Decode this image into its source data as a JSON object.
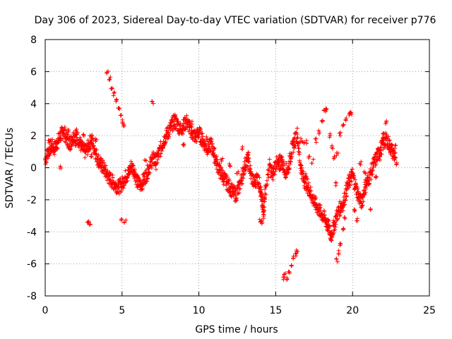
{
  "chart_data": {
    "type": "scatter",
    "title": "Day 306 of 2023, Sidereal Day-to-day VTEC variation (SDTVAR) for receiver p776",
    "xlabel": "GPS time / hours",
    "ylabel": "SDTVAR / TECUs",
    "xlim": [
      0,
      25
    ],
    "ylim": [
      -8,
      8
    ],
    "xticks": [
      0,
      5,
      10,
      15,
      20,
      25
    ],
    "yticks": [
      -8,
      -6,
      -4,
      -2,
      0,
      2,
      4,
      6,
      8
    ],
    "grid": true,
    "marker": "+",
    "series": [
      {
        "name": "SDTVAR",
        "color": "#ff0000",
        "trace_points": [
          [
            0.0,
            0.5
          ],
          [
            0.2,
            1.0
          ],
          [
            0.4,
            1.4
          ],
          [
            0.6,
            1.2
          ],
          [
            0.8,
            1.6
          ],
          [
            1.0,
            2.0
          ],
          [
            1.2,
            2.3
          ],
          [
            1.4,
            1.8
          ],
          [
            1.6,
            1.5
          ],
          [
            1.8,
            1.9
          ],
          [
            2.0,
            2.1
          ],
          [
            2.2,
            1.7
          ],
          [
            2.4,
            1.2
          ],
          [
            2.6,
            1.0
          ],
          [
            2.8,
            1.3
          ],
          [
            3.0,
            1.8
          ],
          [
            3.2,
            1.2
          ],
          [
            3.4,
            0.6
          ],
          [
            3.6,
            0.2
          ],
          [
            3.8,
            0.0
          ],
          [
            4.0,
            -0.4
          ],
          [
            4.2,
            -0.7
          ],
          [
            4.4,
            -0.9
          ],
          [
            4.6,
            -1.1
          ],
          [
            4.8,
            -1.2
          ],
          [
            5.0,
            -1.0
          ],
          [
            5.2,
            -0.6
          ],
          [
            5.4,
            -0.4
          ],
          [
            5.6,
            0.1
          ],
          [
            5.8,
            -0.2
          ],
          [
            6.0,
            -0.9
          ],
          [
            6.2,
            -1.1
          ],
          [
            6.4,
            -0.8
          ],
          [
            6.6,
            -0.4
          ],
          [
            6.8,
            0.1
          ],
          [
            7.0,
            0.6
          ],
          [
            7.2,
            0.3
          ],
          [
            7.4,
            0.9
          ],
          [
            7.6,
            1.4
          ],
          [
            7.8,
            1.9
          ],
          [
            8.0,
            2.2
          ],
          [
            8.2,
            2.6
          ],
          [
            8.4,
            2.9
          ],
          [
            8.6,
            2.7
          ],
          [
            8.8,
            2.4
          ],
          [
            9.0,
            2.6
          ],
          [
            9.2,
            2.9
          ],
          [
            9.4,
            2.5
          ],
          [
            9.6,
            2.1
          ],
          [
            9.8,
            1.9
          ],
          [
            10.0,
            2.2
          ],
          [
            10.2,
            1.8
          ],
          [
            10.4,
            1.4
          ],
          [
            10.6,
            1.2
          ],
          [
            10.8,
            1.5
          ],
          [
            11.0,
            0.8
          ],
          [
            11.2,
            0.2
          ],
          [
            11.4,
            -0.3
          ],
          [
            11.6,
            -0.6
          ],
          [
            11.8,
            -0.9
          ],
          [
            12.0,
            -1.2
          ],
          [
            12.2,
            -1.5
          ],
          [
            12.4,
            -1.7
          ],
          [
            12.6,
            -1.3
          ],
          [
            12.8,
            -0.6
          ],
          [
            13.0,
            0.2
          ],
          [
            13.2,
            0.5
          ],
          [
            13.4,
            -0.5
          ],
          [
            13.6,
            -1.0
          ],
          [
            13.8,
            -0.6
          ],
          [
            14.0,
            -1.2
          ],
          [
            14.1,
            -2.1
          ],
          [
            14.2,
            -2.8
          ],
          [
            14.3,
            -1.6
          ],
          [
            14.6,
            0.1
          ],
          [
            14.8,
            -0.5
          ],
          [
            15.0,
            0.3
          ],
          [
            15.2,
            0.1
          ],
          [
            15.4,
            0.4
          ],
          [
            15.6,
            -0.2
          ],
          [
            15.8,
            -0.1
          ],
          [
            16.0,
            0.9
          ],
          [
            16.2,
            1.6
          ],
          [
            16.4,
            2.1
          ],
          [
            16.6,
            0.2
          ],
          [
            16.8,
            -0.7
          ],
          [
            17.0,
            -1.0
          ],
          [
            17.2,
            -1.4
          ],
          [
            17.4,
            -1.9
          ],
          [
            17.6,
            -2.3
          ],
          [
            17.8,
            -2.6
          ],
          [
            18.0,
            -2.9
          ],
          [
            18.2,
            -3.2
          ],
          [
            18.4,
            -3.6
          ],
          [
            18.6,
            -4.2
          ],
          [
            18.8,
            -3.6
          ],
          [
            19.0,
            -2.9
          ],
          [
            19.2,
            -2.5
          ],
          [
            19.4,
            -2.2
          ],
          [
            19.6,
            -1.4
          ],
          [
            19.8,
            -0.8
          ],
          [
            20.0,
            -0.4
          ],
          [
            20.2,
            -1.2
          ],
          [
            20.4,
            -1.8
          ],
          [
            20.6,
            -2.2
          ],
          [
            20.8,
            -1.2
          ],
          [
            21.0,
            -0.8
          ],
          [
            21.2,
            -0.3
          ],
          [
            21.4,
            0.3
          ],
          [
            21.6,
            0.7
          ],
          [
            21.8,
            1.1
          ],
          [
            22.0,
            1.5
          ],
          [
            22.2,
            1.8
          ],
          [
            22.4,
            1.4
          ],
          [
            22.6,
            1.0
          ],
          [
            22.8,
            0.6
          ]
        ],
        "extra_points": [
          [
            0.2,
            1.6
          ],
          [
            0.5,
            1.1
          ],
          [
            1.0,
            0.1
          ],
          [
            1.5,
            2.3
          ],
          [
            2.0,
            1.5
          ],
          [
            2.5,
            2.1
          ],
          [
            3.0,
            0.7
          ],
          [
            3.3,
            1.7
          ],
          [
            4.05,
            6.0
          ],
          [
            4.2,
            5.6
          ],
          [
            4.35,
            5.0
          ],
          [
            4.5,
            4.6
          ],
          [
            4.65,
            4.2
          ],
          [
            4.8,
            3.7
          ],
          [
            4.9,
            3.2
          ],
          [
            5.0,
            2.9
          ],
          [
            5.15,
            2.6
          ],
          [
            2.8,
            -3.4
          ],
          [
            2.9,
            -3.5
          ],
          [
            5.0,
            -3.2
          ],
          [
            5.2,
            -3.3
          ],
          [
            7.0,
            4.1
          ],
          [
            6.5,
            0.5
          ],
          [
            7.2,
            0.8
          ],
          [
            8.5,
            3.2
          ],
          [
            9.0,
            1.5
          ],
          [
            9.5,
            2.8
          ],
          [
            10.5,
            1.9
          ],
          [
            11.0,
            1.2
          ],
          [
            11.5,
            0.5
          ],
          [
            12.0,
            0.2
          ],
          [
            12.5,
            -0.3
          ],
          [
            12.8,
            1.2
          ],
          [
            13.2,
            0.9
          ],
          [
            14.0,
            -3.3
          ],
          [
            14.1,
            -3.4
          ],
          [
            15.3,
            0.7
          ],
          [
            15.5,
            -6.9
          ],
          [
            15.6,
            -6.6
          ],
          [
            15.7,
            -7.0
          ],
          [
            15.85,
            -6.5
          ],
          [
            16.0,
            -6.1
          ],
          [
            16.15,
            -5.6
          ],
          [
            16.3,
            -5.4
          ],
          [
            16.4,
            -5.2
          ],
          [
            16.6,
            1.7
          ],
          [
            16.8,
            1.5
          ],
          [
            17.0,
            1.6
          ],
          [
            17.2,
            0.7
          ],
          [
            17.4,
            0.4
          ],
          [
            17.6,
            1.7
          ],
          [
            17.8,
            2.2
          ],
          [
            18.0,
            3.0
          ],
          [
            18.2,
            3.5
          ],
          [
            18.3,
            3.7
          ],
          [
            18.5,
            2.0
          ],
          [
            18.7,
            1.3
          ],
          [
            18.8,
            0.6
          ],
          [
            18.9,
            -1.0
          ],
          [
            19.0,
            0.9
          ],
          [
            19.2,
            2.1
          ],
          [
            19.4,
            2.6
          ],
          [
            19.6,
            3.0
          ],
          [
            19.8,
            3.3
          ],
          [
            19.9,
            3.4
          ],
          [
            19.0,
            -5.8
          ],
          [
            19.1,
            -5.3
          ],
          [
            19.2,
            -4.8
          ],
          [
            19.35,
            -3.8
          ],
          [
            19.5,
            -3.2
          ],
          [
            18.6,
            -4.5
          ],
          [
            18.4,
            -3.9
          ],
          [
            20.5,
            0.3
          ],
          [
            20.8,
            -0.3
          ],
          [
            21.2,
            -2.6
          ],
          [
            21.5,
            -0.6
          ],
          [
            21.8,
            0.6
          ],
          [
            22.0,
            2.1
          ],
          [
            22.2,
            2.8
          ],
          [
            22.5,
            1.2
          ],
          [
            22.9,
            0.2
          ],
          [
            22.8,
            1.3
          ],
          [
            20.3,
            -3.3
          ],
          [
            20.1,
            -2.6
          ],
          [
            16.9,
            -0.5
          ]
        ]
      }
    ]
  }
}
